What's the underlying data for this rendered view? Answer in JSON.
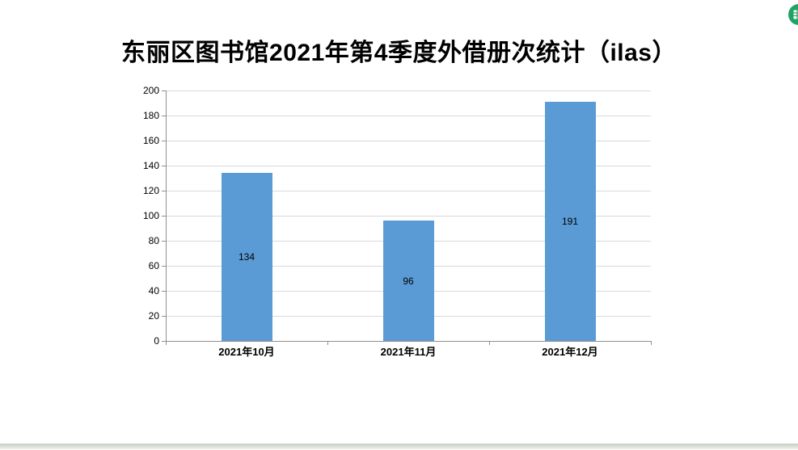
{
  "title": "东丽区图书馆2021年第4季度外借册次统计（ilas）",
  "chart_data": {
    "type": "bar",
    "title": "东丽区图书馆2021年第4季度外借册次统计（ilas）",
    "categories": [
      "2021年10月",
      "2021年11月",
      "2021年12月"
    ],
    "values": [
      134,
      96,
      191
    ],
    "data_labels": [
      "134",
      "96",
      "191"
    ],
    "xlabel": "",
    "ylabel": "",
    "ylim": [
      0,
      200
    ],
    "yticks": [
      0,
      20,
      40,
      60,
      80,
      100,
      120,
      140,
      160,
      180,
      200
    ],
    "grid": true,
    "legend": "none",
    "bar_color": "#5b9bd5",
    "gridline_color": "#d9d9d9",
    "axis_color": "#8f8f8f"
  },
  "icons": {
    "spreadsheet_badge": {
      "label": "spreadsheet-icon",
      "color": "#21a366"
    }
  }
}
